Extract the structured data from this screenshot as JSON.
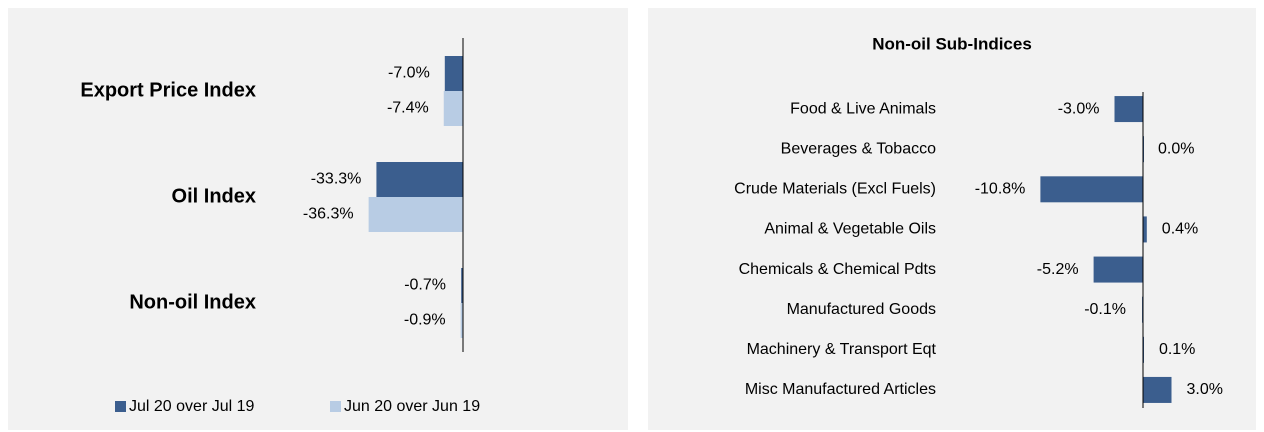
{
  "chart_data": [
    {
      "type": "bar",
      "orientation": "horizontal",
      "categories": [
        "Export Price Index",
        "Oil Index",
        "Non-oil Index"
      ],
      "series": [
        {
          "name": "Jul 20 over Jul 19",
          "color": "#3b5e8e",
          "values": [
            -7.0,
            -33.3,
            -0.7
          ],
          "value_labels": [
            "-7.0%",
            "-33.3%",
            "-0.7%"
          ]
        },
        {
          "name": "Jun 20 over Jun 19",
          "color": "#b8cce4",
          "values": [
            -7.4,
            -36.3,
            -0.9
          ],
          "value_labels": [
            "-7.4%",
            "-36.3%",
            "-0.9%"
          ]
        }
      ],
      "xlim": [
        -40,
        0
      ],
      "legend": "bottom"
    },
    {
      "type": "bar",
      "orientation": "horizontal",
      "title": "Non-oil Sub-Indices",
      "categories": [
        "Food & Live Animals",
        "Beverages & Tobacco",
        "Crude Materials (Excl Fuels)",
        "Animal & Vegetable Oils",
        "Chemicals & Chemical Pdts",
        "Manufactured Goods",
        "Machinery & Transport Eqt",
        "Misc Manufactured Articles"
      ],
      "color": "#3b5e8e",
      "values": [
        -3.0,
        0.0,
        -10.8,
        0.4,
        -5.2,
        -0.1,
        0.1,
        3.0
      ],
      "value_labels": [
        "-3.0%",
        "0.0%",
        "-10.8%",
        "0.4%",
        "-5.2%",
        "-0.1%",
        "0.1%",
        "3.0%"
      ],
      "xlim": [
        -12,
        4
      ]
    }
  ]
}
